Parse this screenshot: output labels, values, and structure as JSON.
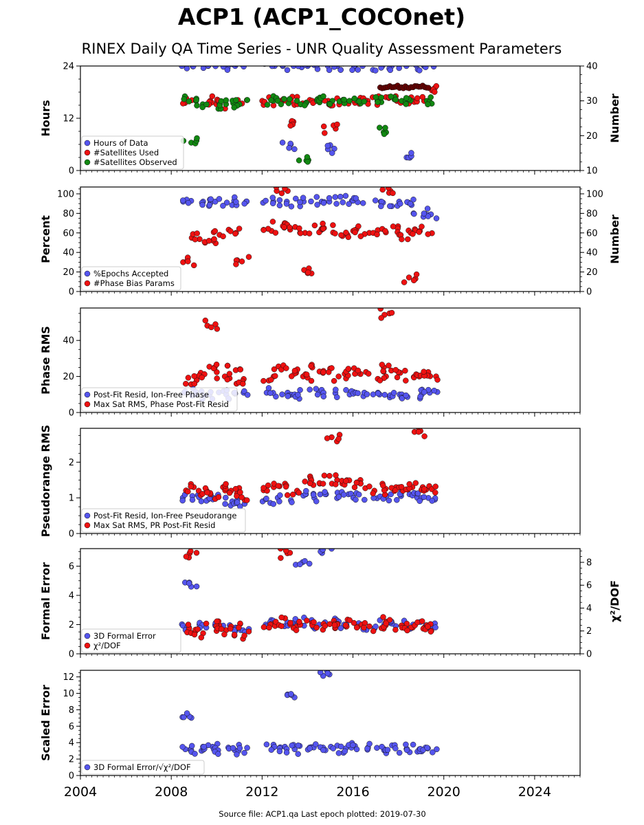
{
  "title": "ACP1 (ACP1_COCOnet)",
  "subtitle": "RINEX Daily QA Time Series - UNR Quality Assessment Parameters",
  "footer": "Source file: ACP1.qa Last epoch plotted: 2019-07-30",
  "colors": {
    "blue": "#5555ee",
    "red": "#ee1111",
    "green": "#118811",
    "darkred": "#660000"
  },
  "chart_data": [
    {
      "type": "scatter",
      "id": "p1",
      "ylabel": "Hours",
      "ylabel_right": "Number",
      "ylim": [
        0,
        24
      ],
      "ylim_right": [
        10,
        40
      ],
      "yticks": [
        "0",
        "12",
        "24"
      ],
      "yticks_right": [
        "10",
        "20",
        "30",
        "40"
      ],
      "xlim": [
        2004,
        2026
      ],
      "grid": false,
      "legend_placement": "lower-left",
      "series": [
        {
          "name": "Hours of Data",
          "color": "blue",
          "axis": "left",
          "x": [
            2008.8,
            2009.5,
            2010.2,
            2010.9,
            2012.4,
            2013.0,
            2013.5,
            2014.0,
            2014.7,
            2015.2,
            2015.9,
            2016.3,
            2017.2,
            2017.9,
            2018.6,
            2019.3,
            2013.1,
            2014.9,
            2018.4
          ],
          "y": [
            24,
            24,
            24,
            24,
            24,
            24,
            24,
            24,
            24,
            24,
            24,
            24,
            24,
            24,
            24,
            24,
            6,
            5,
            3
          ]
        },
        {
          "name": "#Satellites Used",
          "color": "red",
          "axis": "right",
          "x": [
            2008.8,
            2009.5,
            2010.3,
            2011.0,
            2012.3,
            2013.0,
            2013.6,
            2014.2,
            2014.8,
            2015.5,
            2016.0,
            2016.4,
            2017.2,
            2017.8,
            2018.4,
            2019.0,
            2019.4,
            2013.1,
            2015.0
          ],
          "y": [
            30,
            30,
            29,
            30,
            30,
            30,
            30,
            30,
            30,
            30,
            30,
            30,
            30,
            30,
            30,
            30,
            33,
            24,
            22
          ]
        },
        {
          "name": "#Satellites Observed",
          "color": "green",
          "axis": "right",
          "x": [
            2008.8,
            2009.4,
            2010.0,
            2010.7,
            2011.1,
            2012.3,
            2013.0,
            2013.7,
            2014.3,
            2014.9,
            2015.6,
            2016.2,
            2017.2,
            2017.9,
            2018.6,
            2019.3,
            2008.8,
            2013.8,
            2017.3
          ],
          "y": [
            30,
            29,
            29,
            29,
            29,
            30,
            30,
            30,
            30,
            30,
            30,
            30,
            30,
            30,
            30,
            30,
            18,
            13,
            21
          ]
        }
      ]
    },
    {
      "type": "scatter",
      "id": "p2",
      "ylabel": "Percent",
      "ylabel_right": "Number",
      "ylim": [
        0,
        107
      ],
      "ylim_right": [
        0,
        107
      ],
      "yticks": [
        "0",
        "20",
        "40",
        "60",
        "80",
        "100"
      ],
      "yticks_right": [
        "0",
        "20",
        "40",
        "60",
        "80",
        "100"
      ],
      "xlim": [
        2004,
        2026
      ],
      "grid": false,
      "legend_placement": "lower-left",
      "series": [
        {
          "name": "%Epochs Accepted",
          "color": "blue",
          "axis": "left",
          "x": [
            2008.8,
            2009.4,
            2010.0,
            2010.6,
            2011.0,
            2012.3,
            2013.0,
            2013.7,
            2014.4,
            2015.0,
            2015.7,
            2016.3,
            2017.2,
            2017.8,
            2018.4,
            2019.0,
            2019.4
          ],
          "y": [
            92,
            92,
            92,
            91,
            92,
            92,
            92,
            92,
            92,
            92,
            93,
            93,
            91,
            92,
            91,
            80,
            79
          ]
        },
        {
          "name": "#Phase Bias Params",
          "color": "red",
          "axis": "right",
          "x": [
            2008.8,
            2009.2,
            2009.7,
            2010.2,
            2010.7,
            2011.1,
            2012.3,
            2012.8,
            2013.3,
            2013.9,
            2014.4,
            2015.0,
            2015.5,
            2016.0,
            2016.4,
            2017.2,
            2017.7,
            2018.2,
            2018.7,
            2019.2,
            2018.5,
            2012.9,
            2013.9,
            2017.5
          ],
          "y": [
            30,
            55,
            50,
            58,
            60,
            32,
            62,
            70,
            66,
            60,
            63,
            65,
            58,
            62,
            60,
            60,
            62,
            58,
            60,
            62,
            13,
            103,
            22,
            103
          ]
        }
      ]
    },
    {
      "type": "scatter",
      "id": "p3",
      "ylabel": "Phase RMS",
      "ylim": [
        0,
        58
      ],
      "yticks": [
        "0",
        "20",
        "40"
      ],
      "xlim": [
        2004,
        2026
      ],
      "grid": false,
      "legend_placement": "lower-left",
      "series": [
        {
          "name": "Post-Fit Resid, Ion-Free Phase",
          "color": "blue",
          "axis": "left",
          "x": [
            2008.8,
            2009.4,
            2010.0,
            2010.6,
            2011.1,
            2012.3,
            2013.0,
            2013.7,
            2014.4,
            2015.0,
            2015.7,
            2016.3,
            2017.2,
            2017.8,
            2018.4,
            2019.0,
            2019.4
          ],
          "y": [
            11,
            10,
            10,
            10,
            11,
            11,
            11,
            10,
            11,
            11,
            10,
            11,
            10,
            10,
            10,
            10,
            11
          ]
        },
        {
          "name": "Max Sat RMS, Phase Post-Fit Resid",
          "color": "red",
          "axis": "left",
          "x": [
            2008.8,
            2009.3,
            2009.8,
            2010.3,
            2010.8,
            2011.1,
            2012.3,
            2012.8,
            2013.3,
            2013.9,
            2014.4,
            2015.0,
            2015.5,
            2016.0,
            2016.4,
            2017.2,
            2017.6,
            2018.1,
            2018.6,
            2019.1,
            2019.4,
            2009.7,
            2017.4
          ],
          "y": [
            18,
            22,
            25,
            20,
            24,
            16,
            20,
            24,
            22,
            20,
            25,
            22,
            20,
            24,
            22,
            20,
            25,
            22,
            20,
            22,
            20,
            49,
            55
          ]
        }
      ]
    },
    {
      "type": "scatter",
      "id": "p4",
      "ylabel": "Pseudorange RMS",
      "ylim": [
        0,
        2.95
      ],
      "yticks": [
        "0",
        "1",
        "2"
      ],
      "xlim": [
        2004,
        2026
      ],
      "grid": false,
      "legend_placement": "lower-left",
      "series": [
        {
          "name": "Post-Fit Resid, Ion-Free Pseudorange",
          "color": "blue",
          "axis": "left",
          "x": [
            2008.8,
            2009.4,
            2010.0,
            2010.6,
            2011.1,
            2012.3,
            2013.0,
            2013.7,
            2014.4,
            2015.0,
            2015.7,
            2016.3,
            2017.2,
            2017.8,
            2018.4,
            2019.0,
            2019.4
          ],
          "y": [
            1.0,
            0.95,
            1.0,
            0.9,
            0.85,
            0.9,
            1.0,
            1.1,
            1.0,
            1.1,
            1.1,
            1.0,
            1.05,
            1.05,
            1.1,
            1.0,
            0.95
          ]
        },
        {
          "name": "Max Sat RMS, PR Post-Fit Resid",
          "color": "red",
          "axis": "left",
          "x": [
            2008.8,
            2009.3,
            2009.8,
            2010.3,
            2010.8,
            2011.1,
            2012.3,
            2012.8,
            2013.3,
            2013.9,
            2014.4,
            2015.0,
            2015.5,
            2016.0,
            2016.4,
            2017.2,
            2017.6,
            2018.1,
            2018.6,
            2019.1,
            2019.4,
            2015.2,
            2018.9
          ],
          "y": [
            1.3,
            1.2,
            1.1,
            1.3,
            1.2,
            1.05,
            1.3,
            1.4,
            1.2,
            1.5,
            1.4,
            1.5,
            1.4,
            1.5,
            1.4,
            1.2,
            1.3,
            1.2,
            1.3,
            1.3,
            1.2,
            2.7,
            2.85
          ]
        }
      ]
    },
    {
      "type": "scatter",
      "id": "p5",
      "ylabel": "Formal Error",
      "ylabel_right": "χ²/DOF",
      "ylim": [
        0,
        7.2
      ],
      "ylim_right": [
        0,
        9.2
      ],
      "yticks": [
        "0",
        "2",
        "4",
        "6"
      ],
      "yticks_right": [
        "0",
        "2",
        "4",
        "6",
        "8"
      ],
      "xlim": [
        2004,
        2026
      ],
      "grid": false,
      "legend_placement": "lower-left",
      "series": [
        {
          "name": "3D Formal Error",
          "color": "blue",
          "axis": "left",
          "x": [
            2008.8,
            2009.4,
            2010.0,
            2010.6,
            2011.1,
            2012.3,
            2013.0,
            2013.7,
            2014.4,
            2015.0,
            2015.7,
            2016.3,
            2017.2,
            2017.8,
            2018.4,
            2019.0,
            2019.4,
            2014.9,
            2008.8,
            2013.8
          ],
          "y": [
            1.8,
            2.0,
            1.9,
            1.8,
            1.7,
            2.0,
            2.1,
            2.2,
            2.0,
            2.1,
            2.0,
            1.9,
            2.0,
            2.1,
            2.0,
            1.9,
            1.8,
            6.9,
            4.6,
            6.1
          ]
        },
        {
          "name": "χ²/DOF",
          "color": "red",
          "axis": "right",
          "x": [
            2008.8,
            2009.3,
            2009.8,
            2010.3,
            2010.8,
            2011.1,
            2012.3,
            2012.8,
            2013.3,
            2013.9,
            2014.4,
            2015.0,
            2015.5,
            2016.0,
            2016.4,
            2017.2,
            2017.6,
            2018.1,
            2018.6,
            2019.1,
            2019.4,
            2008.8,
            2013.1
          ],
          "y": [
            2.2,
            1.8,
            2.5,
            2.0,
            2.4,
            1.6,
            2.6,
            2.8,
            2.4,
            2.7,
            2.5,
            2.6,
            2.3,
            2.7,
            2.4,
            2.2,
            2.8,
            2.4,
            2.3,
            2.5,
            2.2,
            8.8,
            8.8
          ]
        }
      ]
    },
    {
      "type": "scatter",
      "id": "p6",
      "ylabel": "Scaled Error",
      "ylim": [
        0,
        12.8
      ],
      "yticks": [
        "0",
        "2",
        "4",
        "6",
        "8",
        "10",
        "12"
      ],
      "xlim": [
        2004,
        2026
      ],
      "xticks": [
        "2004",
        "2008",
        "2012",
        "2016",
        "2020",
        "2024"
      ],
      "grid": false,
      "legend_placement": "lower-left",
      "series": [
        {
          "name": "3D Formal Error/√χ²/DOF",
          "color": "blue",
          "axis": "left",
          "x": [
            2008.8,
            2009.2,
            2009.7,
            2010.2,
            2010.7,
            2011.1,
            2012.3,
            2012.8,
            2013.3,
            2013.9,
            2014.4,
            2015.0,
            2015.5,
            2016.0,
            2016.4,
            2017.2,
            2017.6,
            2018.1,
            2018.6,
            2019.1,
            2019.4,
            2014.9,
            2013.1,
            2008.8
          ],
          "y": [
            3.2,
            3.0,
            3.5,
            3.2,
            3.4,
            3.0,
            3.4,
            3.5,
            3.2,
            3.6,
            3.4,
            3.5,
            3.3,
            3.6,
            3.4,
            3.2,
            3.5,
            3.3,
            3.2,
            3.4,
            3.2,
            12.3,
            9.5,
            7.1
          ]
        }
      ]
    }
  ]
}
